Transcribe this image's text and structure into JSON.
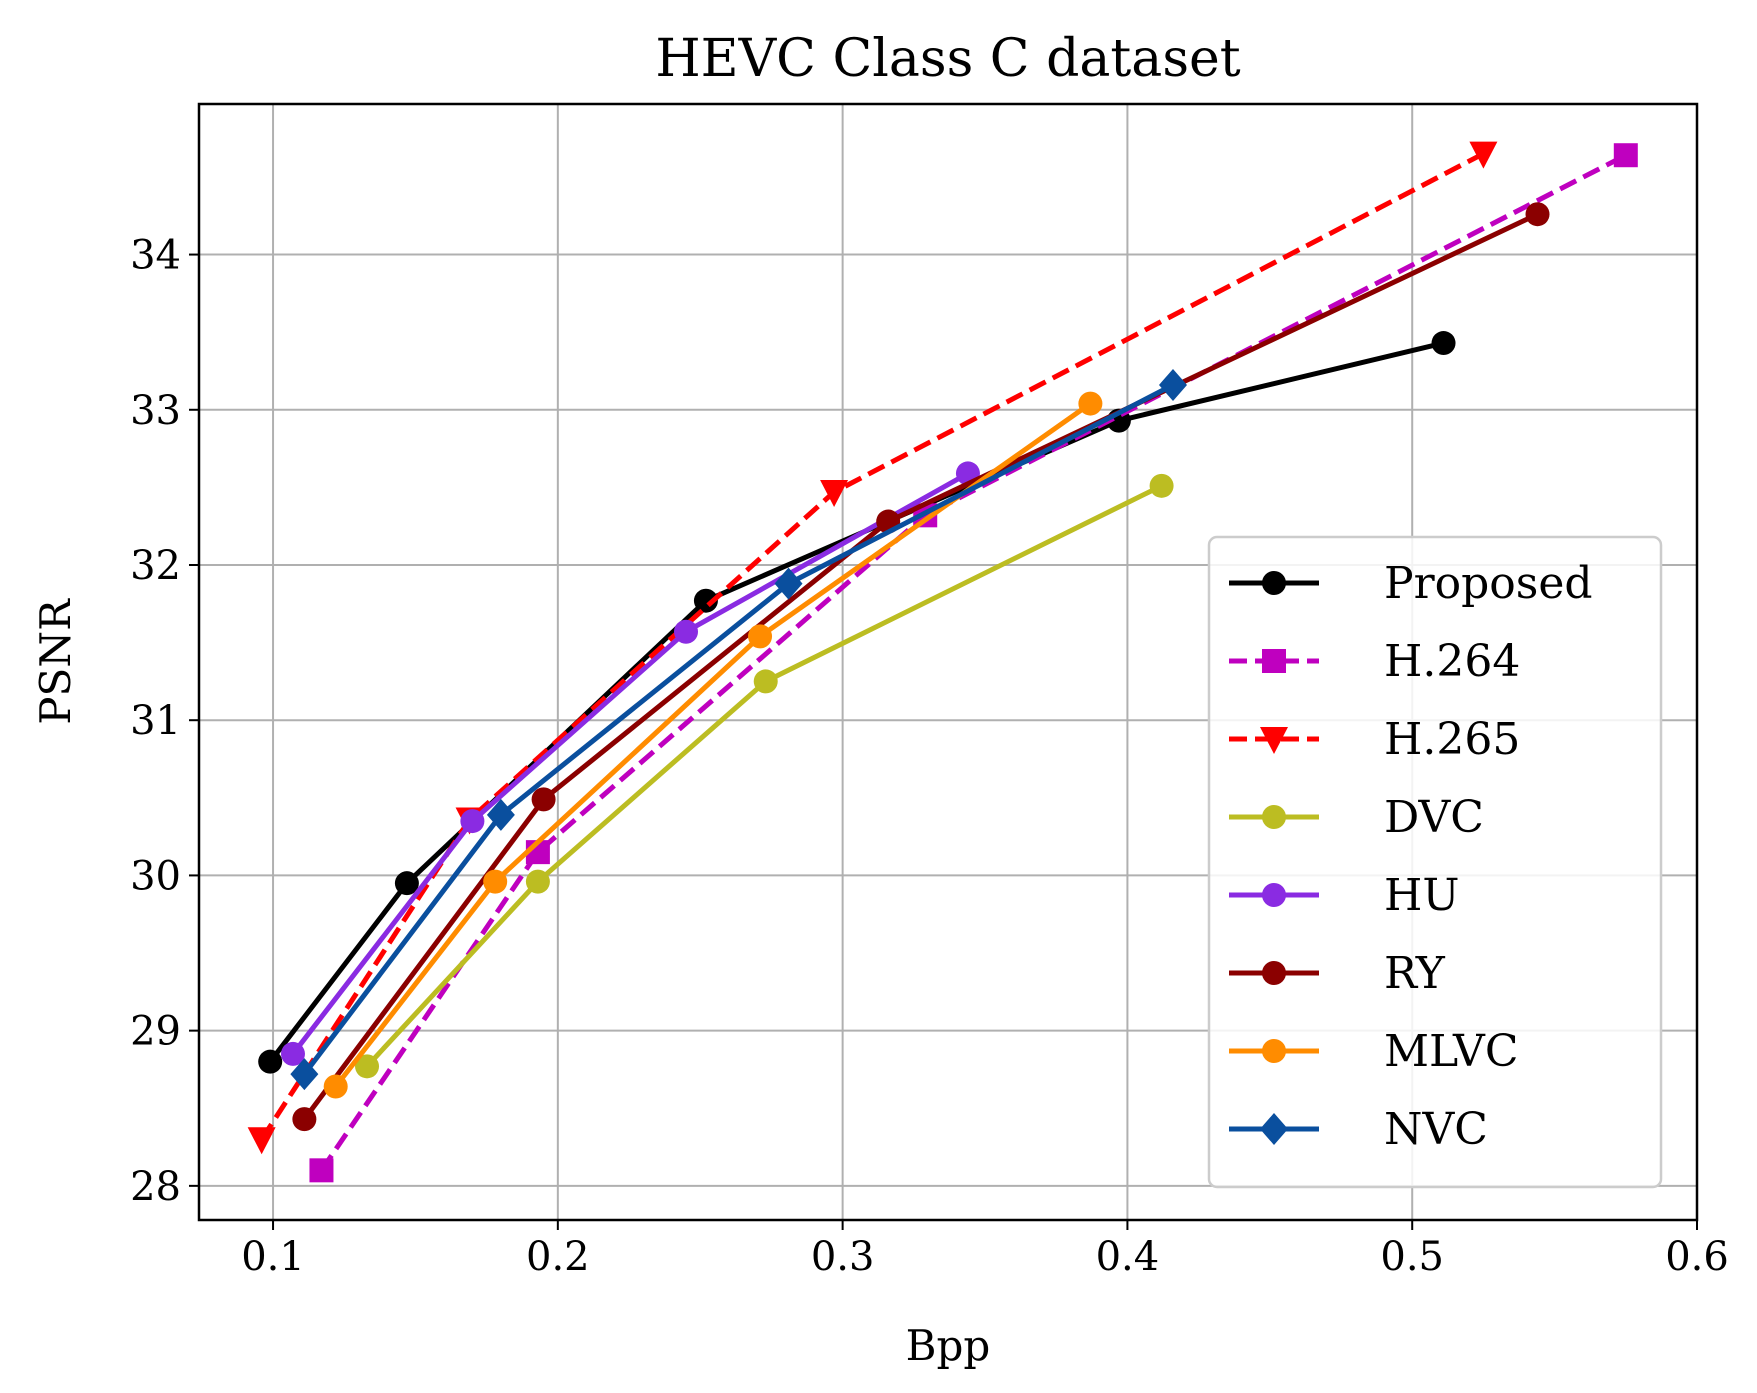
{
  "chart_data": {
    "type": "line",
    "title": "HEVC Class C dataset",
    "xlabel": "Bpp",
    "ylabel": "PSNR",
    "xlim": [
      0.074,
      0.6
    ],
    "ylim": [
      27.78,
      34.97
    ],
    "xticks": [
      0.1,
      0.2,
      0.3,
      0.4,
      0.5,
      0.6
    ],
    "xtick_labels": [
      "0.1",
      "0.2",
      "0.3",
      "0.4",
      "0.5",
      "0.6"
    ],
    "yticks": [
      28,
      29,
      30,
      31,
      32,
      33,
      34
    ],
    "ytick_labels": [
      "28",
      "29",
      "30",
      "31",
      "32",
      "33",
      "34"
    ],
    "grid": true,
    "legend_position": "bottom-right",
    "series": [
      {
        "name": "Proposed",
        "color": "#000000",
        "dash": "solid",
        "marker": "circle",
        "x": [
          0.099,
          0.147,
          0.252,
          0.397,
          0.511
        ],
        "y": [
          28.8,
          29.95,
          31.77,
          32.93,
          33.43
        ]
      },
      {
        "name": "H.264",
        "color": "#bf00bf",
        "dash": "dashed",
        "marker": "square",
        "x": [
          0.117,
          0.193,
          0.329,
          0.575
        ],
        "y": [
          28.1,
          30.15,
          32.32,
          34.64
        ]
      },
      {
        "name": "H.265",
        "color": "#ff0000",
        "dash": "dashed",
        "marker": "triangle-down",
        "x": [
          0.096,
          0.169,
          0.297,
          0.525
        ],
        "y": [
          28.3,
          30.36,
          32.47,
          34.65
        ]
      },
      {
        "name": "DVC",
        "color": "#bcbd22",
        "dash": "solid",
        "marker": "circle",
        "x": [
          0.133,
          0.193,
          0.273,
          0.412
        ],
        "y": [
          28.77,
          29.96,
          31.25,
          32.51
        ]
      },
      {
        "name": "HU",
        "color": "#8a2be2",
        "dash": "solid",
        "marker": "circle",
        "x": [
          0.107,
          0.17,
          0.245,
          0.344
        ],
        "y": [
          28.85,
          30.35,
          31.57,
          32.59
        ]
      },
      {
        "name": "RY",
        "color": "#8b0000",
        "dash": "solid",
        "marker": "circle",
        "x": [
          0.111,
          0.195,
          0.316,
          0.544
        ],
        "y": [
          28.43,
          30.49,
          32.28,
          34.26
        ]
      },
      {
        "name": "MLVC",
        "color": "#ff8c00",
        "dash": "solid",
        "marker": "circle",
        "x": [
          0.122,
          0.178,
          0.271,
          0.387
        ],
        "y": [
          28.64,
          29.96,
          31.54,
          33.04
        ]
      },
      {
        "name": "NVC",
        "color": "#0a4f9e",
        "dash": "solid",
        "marker": "diamond",
        "x": [
          0.111,
          0.18,
          0.281,
          0.416
        ],
        "y": [
          28.72,
          30.39,
          31.88,
          33.16
        ]
      }
    ]
  }
}
